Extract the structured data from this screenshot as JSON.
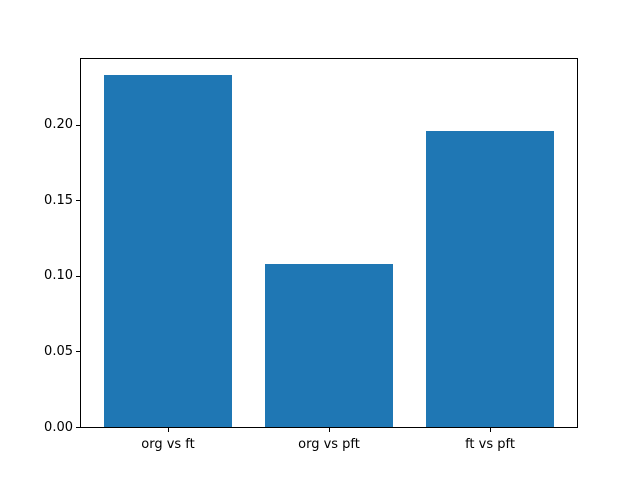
{
  "chart_data": {
    "type": "bar",
    "categories": [
      "org vs ft",
      "org vs pft",
      "ft vs pft"
    ],
    "values": [
      0.233,
      0.108,
      0.196
    ],
    "title": "",
    "xlabel": "",
    "ylabel": "",
    "ylim": [
      0,
      0.2434
    ],
    "xlim": [
      -0.54,
      2.54
    ],
    "yticks": [
      0.0,
      0.05,
      0.1,
      0.15,
      0.2
    ],
    "ytick_labels": [
      "0.00",
      "0.05",
      "0.10",
      "0.15",
      "0.20"
    ],
    "bar_color": "#1f77b4",
    "bar_width_fraction": 0.8,
    "grid": false,
    "legend_position": "none",
    "spine_color": "#000000",
    "background_color": "#ffffff"
  }
}
